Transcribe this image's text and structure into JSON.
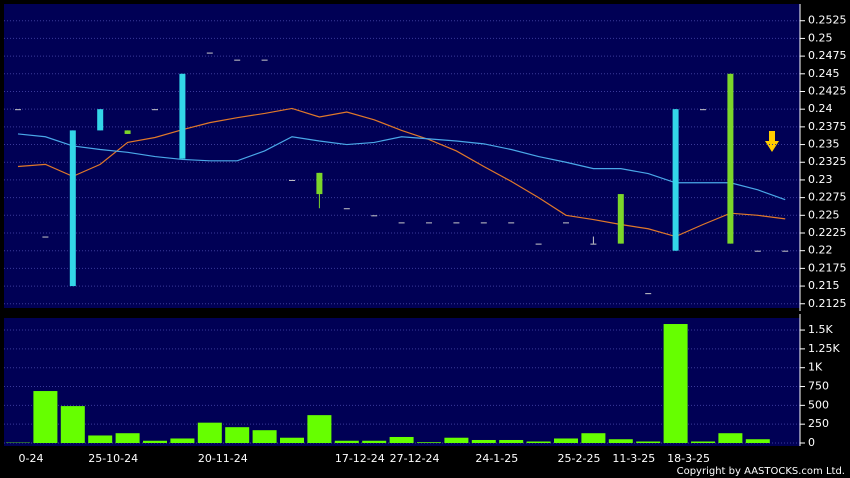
{
  "chart_data": [
    {
      "type": "candlestick",
      "open": [
        0.24,
        0.222,
        0.237,
        0.24,
        0.2365,
        0.24,
        0.245,
        0.248,
        0.247,
        0.247,
        0.23,
        0.228,
        0.226,
        0.225,
        0.224,
        0.224,
        0.224,
        0.224,
        0.224,
        0.221,
        0.224,
        0.221,
        0.221,
        0.214,
        0.24,
        0.24,
        0.221,
        0.22,
        0.22
      ],
      "high": [
        0.24,
        0.222,
        0.237,
        0.24,
        0.237,
        0.24,
        0.245,
        0.248,
        0.247,
        0.247,
        0.23,
        0.231,
        0.226,
        0.225,
        0.224,
        0.224,
        0.224,
        0.224,
        0.224,
        0.221,
        0.224,
        0.222,
        0.228,
        0.214,
        0.24,
        0.24,
        0.245,
        0.22,
        0.22
      ],
      "low": [
        0.24,
        0.222,
        0.215,
        0.237,
        0.2365,
        0.24,
        0.233,
        0.248,
        0.247,
        0.247,
        0.23,
        0.226,
        0.226,
        0.225,
        0.224,
        0.224,
        0.224,
        0.224,
        0.224,
        0.221,
        0.224,
        0.221,
        0.221,
        0.214,
        0.22,
        0.24,
        0.221,
        0.22,
        0.22
      ],
      "close": [
        0.24,
        0.222,
        0.215,
        0.237,
        0.237,
        0.24,
        0.233,
        0.248,
        0.247,
        0.247,
        0.23,
        0.231,
        0.226,
        0.225,
        0.224,
        0.224,
        0.224,
        0.224,
        0.224,
        0.221,
        0.224,
        0.221,
        0.228,
        0.214,
        0.22,
        0.24,
        0.245,
        0.22,
        0.22
      ],
      "up_color": "#7cd62a",
      "down_color": "#33d6e8",
      "flat_color": "#c8c8c8",
      "series": [
        {
          "color": "#e0782a",
          "values": [
            0.2319,
            0.2322,
            0.2305,
            0.2322,
            0.2353,
            0.236,
            0.2371,
            0.2381,
            0.2388,
            0.2394,
            0.2401,
            0.2389,
            0.2396,
            0.2385,
            0.237,
            0.2357,
            0.2341,
            0.2319,
            0.2298,
            0.2275,
            0.225,
            0.2244,
            0.2237,
            0.2231,
            0.222,
            0.2237,
            0.2253,
            0.225,
            0.2245
          ]
        },
        {
          "color": "#4aa8e8",
          "values": [
            0.2365,
            0.2361,
            0.2348,
            0.2343,
            0.2339,
            0.2333,
            0.2329,
            0.2327,
            0.2327,
            0.2341,
            0.2361,
            0.2355,
            0.235,
            0.2353,
            0.2361,
            0.2358,
            0.2355,
            0.2351,
            0.2343,
            0.2333,
            0.2325,
            0.2316,
            0.2316,
            0.2309,
            0.2296,
            0.2296,
            0.2296,
            0.2286,
            0.2272
          ]
        }
      ],
      "ylim": [
        0.2119,
        0.2543
      ],
      "yticks": [
        0.2525,
        0.25,
        0.2475,
        0.245,
        0.2425,
        0.24,
        0.2375,
        0.235,
        0.2325,
        0.23,
        0.2275,
        0.225,
        0.2225,
        0.22,
        0.2175,
        0.215,
        0.2125
      ],
      "grid": true
    },
    {
      "type": "bar",
      "categories": [
        "0-24",
        null,
        null,
        "25-10-24",
        null,
        null,
        null,
        "20-11-24",
        null,
        null,
        null,
        null,
        "17-12-24",
        null,
        "27-12-24",
        null,
        null,
        "24-1-25",
        null,
        null,
        "25-2-25",
        null,
        "11-3-25",
        null,
        "18-3-25",
        null,
        null,
        null,
        null
      ],
      "values": [
        5,
        690,
        490,
        100,
        130,
        30,
        60,
        270,
        210,
        170,
        70,
        370,
        30,
        30,
        80,
        10,
        70,
        40,
        40,
        20,
        60,
        130,
        50,
        20,
        1580,
        20,
        130,
        50,
        0
      ],
      "color": "#66ff00",
      "ylim": [
        0,
        1660
      ],
      "yticks": [
        0,
        250,
        500,
        750,
        {
          "value": 1000,
          "label": "1K"
        },
        {
          "value": 1250,
          "label": "1.25K"
        },
        {
          "value": 1500,
          "label": "1.5K"
        }
      ],
      "grid": true
    }
  ],
  "copyright": "Copyright by AASTOCKS.com Ltd."
}
